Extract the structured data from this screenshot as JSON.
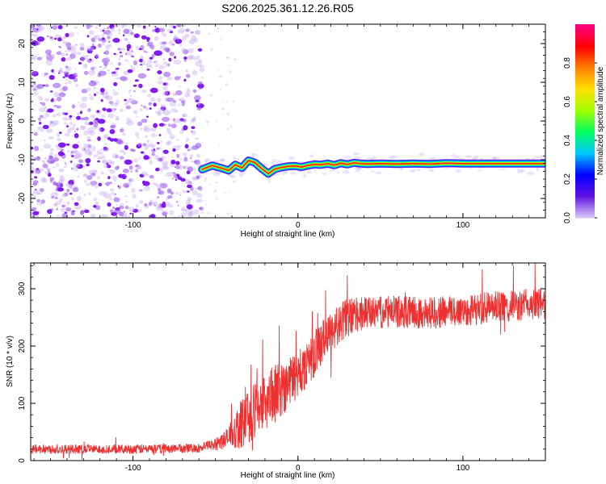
{
  "title": "S206.2025.361.12.26.R05",
  "chart_data": [
    {
      "type": "heatmap",
      "name": "spectrogram",
      "xlabel": "Height of straight line (km)",
      "ylabel": "Frequency (Hz)",
      "xlim": [
        -162,
        150
      ],
      "ylim": [
        -25,
        25
      ],
      "xticks": [
        -100,
        0,
        100
      ],
      "yticks": [
        -20,
        -10,
        0,
        10,
        20
      ],
      "noise_region_x": [
        -162,
        -58
      ],
      "signal_start_x": -58,
      "ridge": {
        "x": [
          -58,
          -52,
          -46,
          -42,
          -38,
          -34,
          -30,
          -26,
          -22,
          -18,
          -14,
          -10,
          -6,
          -2,
          2,
          6,
          10,
          14,
          18,
          22,
          26,
          30,
          34,
          38,
          42,
          50,
          60,
          70,
          80,
          90,
          100,
          110,
          120,
          130,
          140,
          150
        ],
        "frequency": [
          -12.5,
          -11.5,
          -12.2,
          -12.8,
          -11.3,
          -12.1,
          -10.2,
          -10.8,
          -12.3,
          -13.6,
          -12.4,
          -12.0,
          -11.7,
          -11.6,
          -11.9,
          -11.5,
          -11.2,
          -11.3,
          -11.0,
          -11.4,
          -10.9,
          -11.2,
          -10.8,
          -11.0,
          -11.1,
          -11.0,
          -11.1,
          -11.0,
          -11.1,
          -10.9,
          -11.0,
          -11.0,
          -11.0,
          -11.0,
          -11.0,
          -11.0
        ]
      }
    },
    {
      "type": "colorbar",
      "name": "amplitude-scale",
      "label": "Normalized spectral amplitude",
      "ticks": [
        "0.0",
        "0.2",
        "0.4",
        "0.6",
        "0.8"
      ],
      "range": [
        0,
        1
      ],
      "colors": [
        "#d8c8f8",
        "#6010e0",
        "#0000ff",
        "#00c8ff",
        "#00ff60",
        "#a0ff00",
        "#ffe000",
        "#ff8000",
        "#ff0000",
        "#ff0080"
      ]
    },
    {
      "type": "line",
      "name": "snr",
      "xlabel": "Height of straight line (km)",
      "ylabel": "SNR (10 * v/v)",
      "xlim": [
        -162,
        150
      ],
      "ylim": [
        0,
        345
      ],
      "xticks": [
        -100,
        0,
        100
      ],
      "yticks": [
        0,
        100,
        200,
        300
      ],
      "color": "#ee3030",
      "envelope_x": [
        -162,
        -100,
        -60,
        -50,
        -42,
        -36,
        -30,
        -24,
        -18,
        -12,
        -6,
        0,
        6,
        12,
        18,
        24,
        30,
        36,
        45,
        60,
        80,
        100,
        120,
        140,
        150
      ],
      "envelope_mean": [
        20,
        20,
        22,
        28,
        40,
        60,
        75,
        95,
        110,
        120,
        135,
        150,
        170,
        195,
        220,
        235,
        250,
        255,
        258,
        260,
        258,
        262,
        268,
        272,
        275
      ],
      "envelope_spread": [
        8,
        8,
        8,
        10,
        20,
        40,
        45,
        50,
        55,
        50,
        45,
        40,
        40,
        40,
        35,
        35,
        35,
        30,
        28,
        28,
        28,
        28,
        28,
        28,
        28
      ]
    }
  ]
}
